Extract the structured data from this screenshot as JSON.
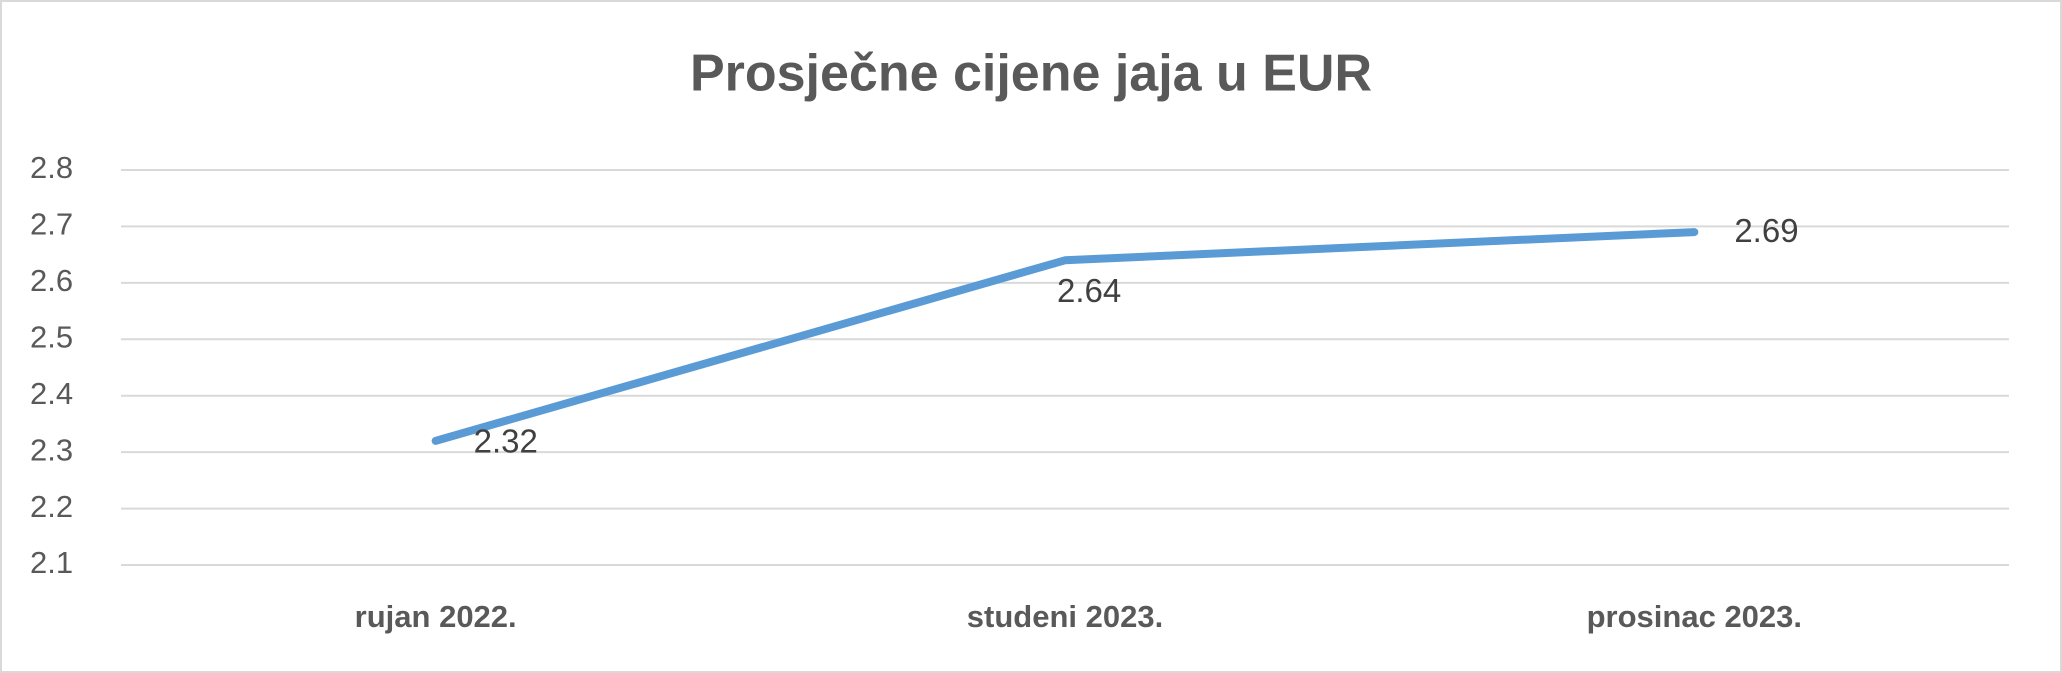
{
  "chart_data": {
    "type": "line",
    "title": "Prosječne cijene jaja u EUR",
    "categories": [
      "rujan 2022.",
      "studeni 2023.",
      "prosinac 2023."
    ],
    "values": [
      2.32,
      2.64,
      2.69
    ],
    "color": "#5b9bd5",
    "ylim": [
      2.1,
      2.8
    ],
    "yticks": [
      2.1,
      2.2,
      2.3,
      2.4,
      2.5,
      2.6,
      2.7,
      2.8
    ],
    "grid": true
  }
}
